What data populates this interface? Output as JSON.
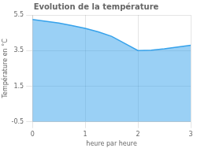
{
  "chart_data": {
    "type": "area",
    "title": "Evolution de la température",
    "xlabel": "heure par heure",
    "ylabel": "Température en °C",
    "x": [
      0,
      0.25,
      0.5,
      0.75,
      1.0,
      1.25,
      1.5,
      1.75,
      2.0,
      2.25,
      2.5,
      2.75,
      3.0
    ],
    "values": [
      5.25,
      5.15,
      5.05,
      4.9,
      4.75,
      4.55,
      4.3,
      3.9,
      3.5,
      3.52,
      3.6,
      3.7,
      3.8
    ],
    "xlim": [
      0,
      3
    ],
    "ylim": [
      -0.5,
      5.5
    ],
    "xticks": [
      0,
      1,
      2,
      3
    ],
    "yticks": [
      -0.5,
      1.5,
      3.5,
      5.5
    ],
    "grid": true
  }
}
